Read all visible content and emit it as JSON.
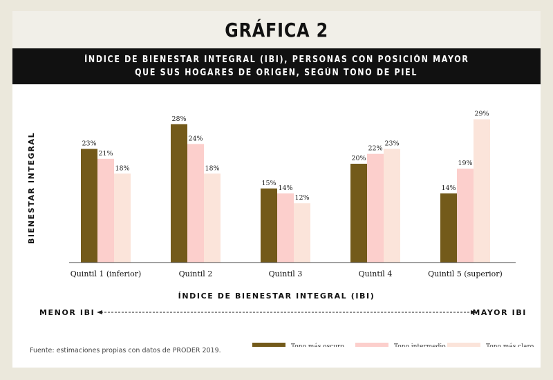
{
  "title": "GRÁFICA 2",
  "subtitle_lines": [
    "ÍNDICE DE BIENESTAR INTEGRAL (IBI), PERSONAS CON POSICIÓN MAYOR",
    "QUE SUS HOGARES DE ORIGEN, SEGÚN TONO DE PIEL"
  ],
  "source": "Fuente: estimaciones propias con datos de PRODER 2019.",
  "axis_left_label": "MENOR IBI",
  "axis_right_label": "MAYOR IBI",
  "chart_data": {
    "type": "bar",
    "title": "",
    "ylabel": "BIENESTAR INTEGRAL",
    "xlabel": "ÍNDICE DE BIENESTAR INTEGRAL (IBI)",
    "categories": [
      "Quintil 1 (inferior)",
      "Quintil 2",
      "Quintil 3",
      "Quintil 4",
      "Quintil 5 (superior)"
    ],
    "ylim": [
      0,
      30
    ],
    "value_suffix": "%",
    "grid": false,
    "legend_position": "bottom-right",
    "series": [
      {
        "name": "Tono más oscuro",
        "color": "#735a1a",
        "values": [
          23,
          28,
          15,
          20,
          14
        ]
      },
      {
        "name": "Tono intermedio",
        "color": "#fccfcc",
        "values": [
          21,
          24,
          14,
          22,
          19
        ]
      },
      {
        "name": "Tono más claro",
        "color": "#fbe4da",
        "values": [
          18,
          18,
          12,
          23,
          29
        ]
      }
    ]
  }
}
